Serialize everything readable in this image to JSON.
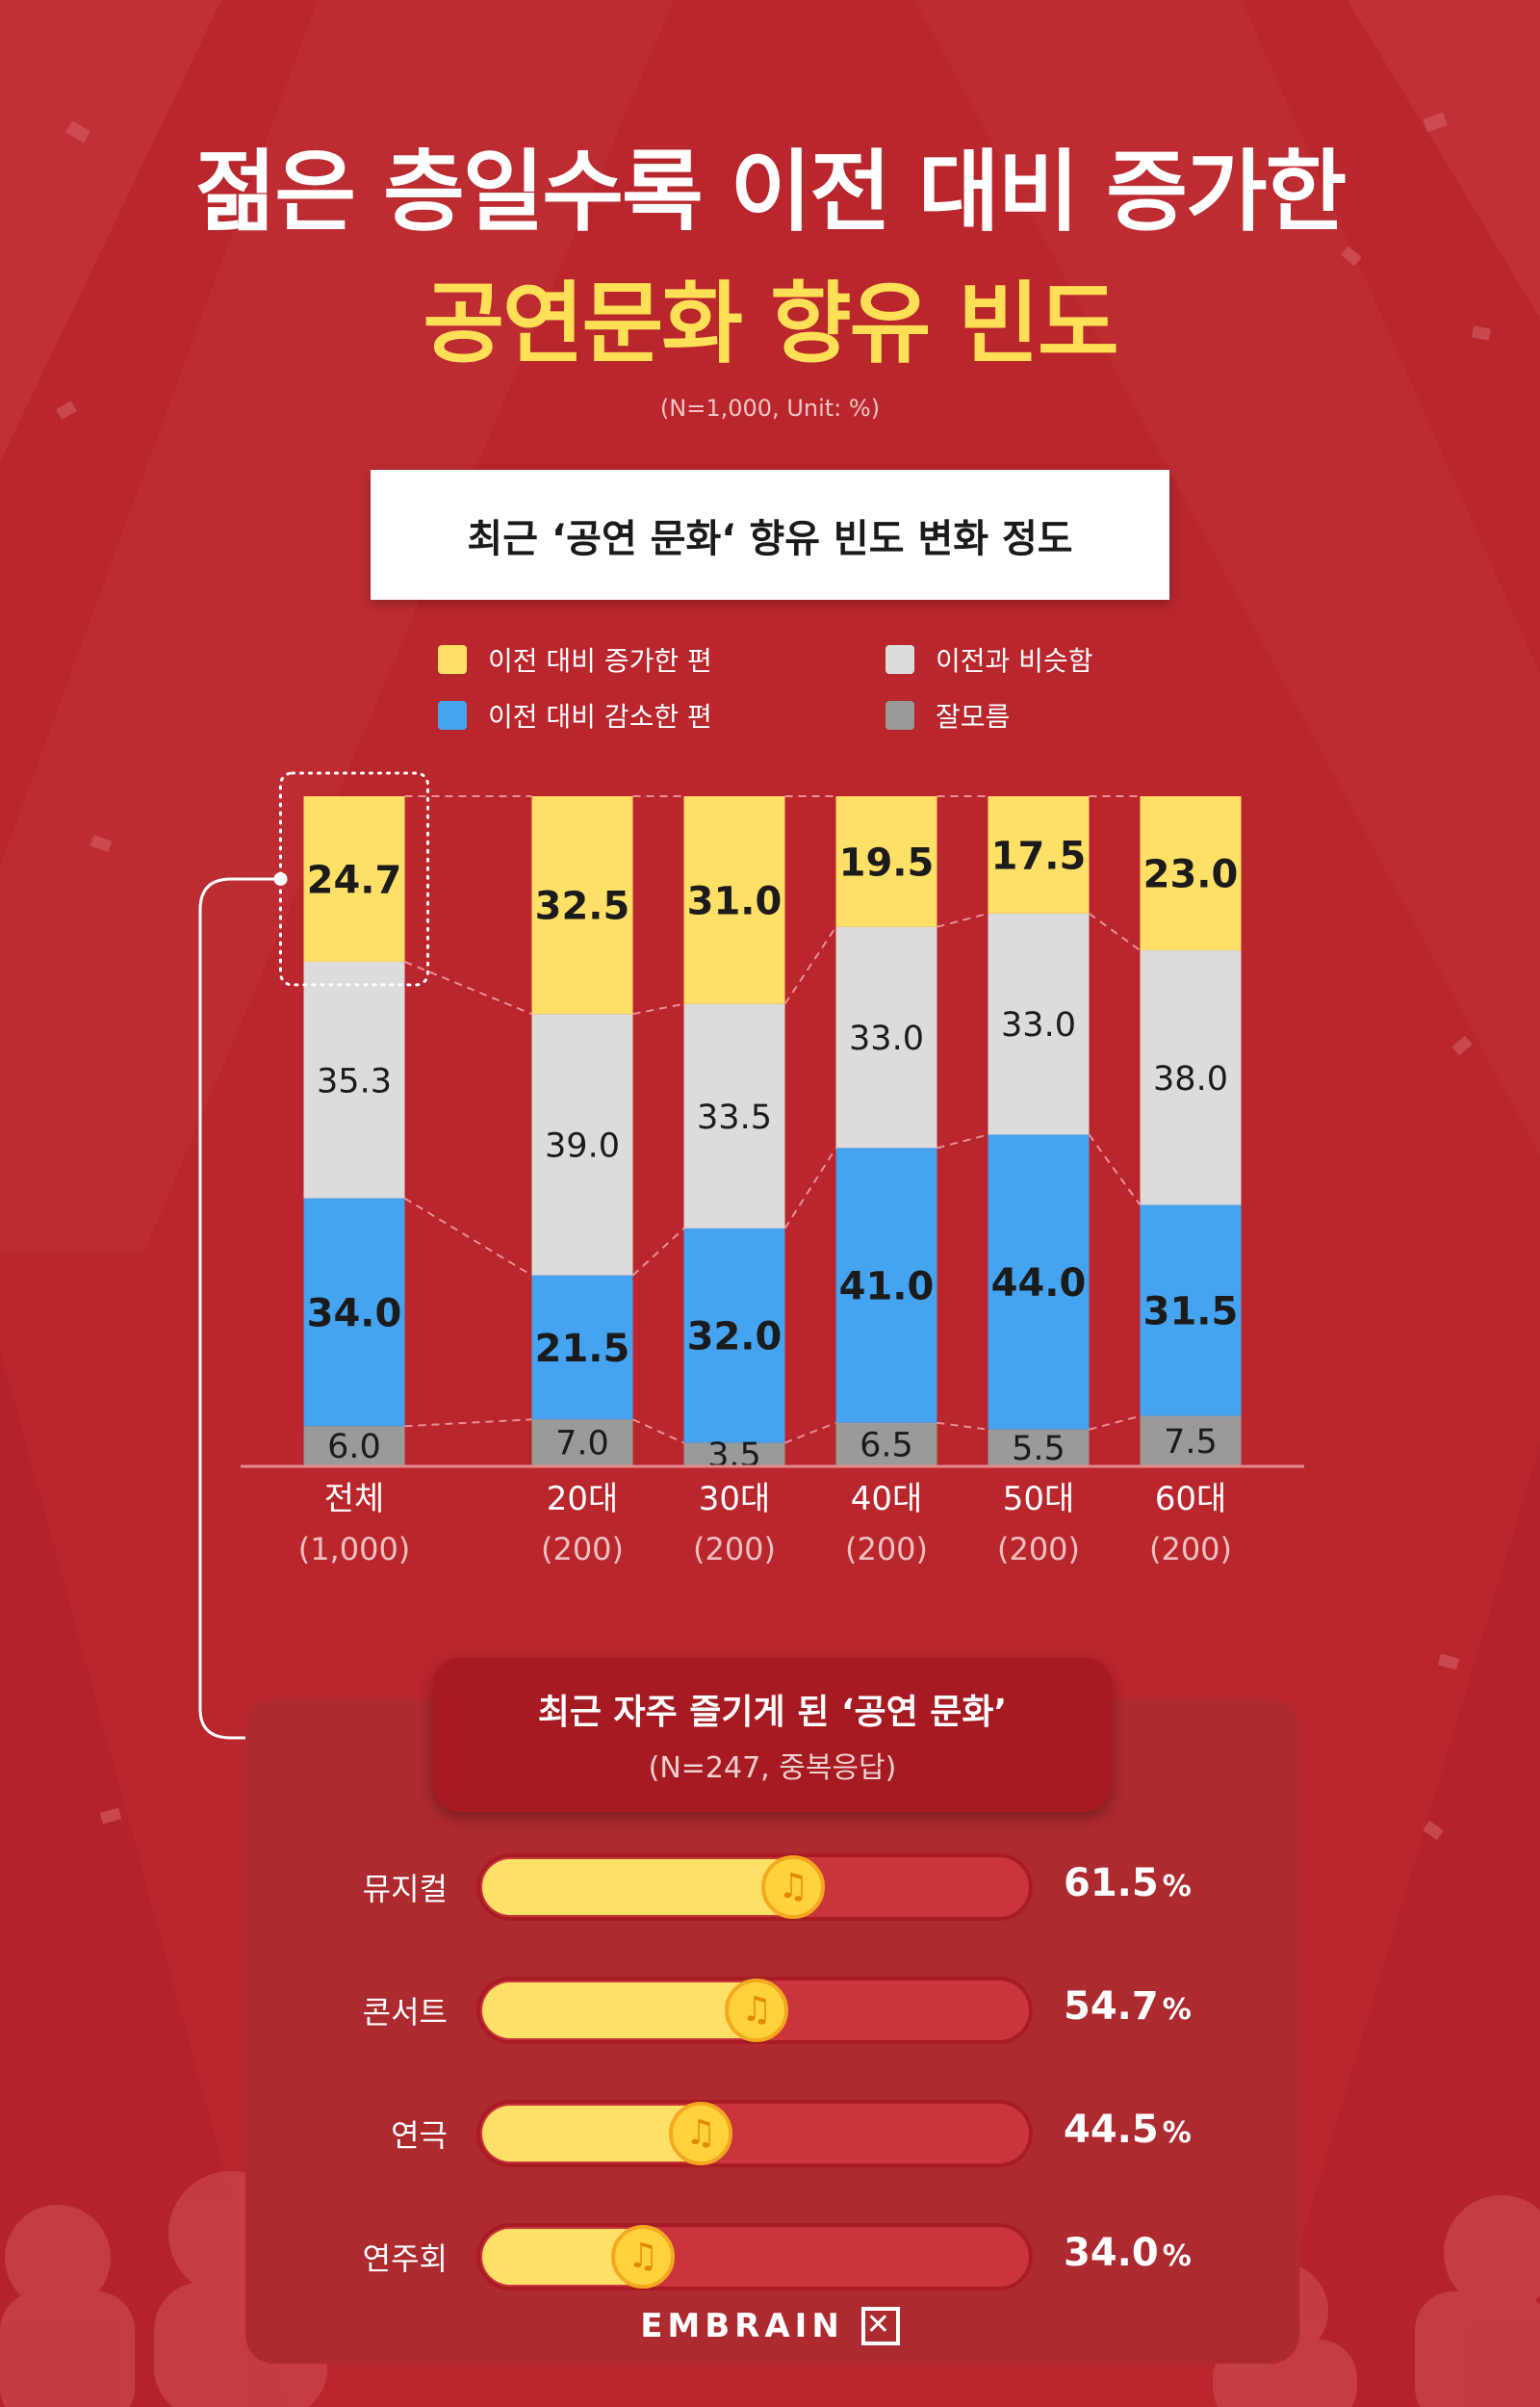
{
  "header": {
    "title_line1": "젊은 층일수록 이전 대비 증가한",
    "title_line2": "공연문화 향유 빈도",
    "sample_note": "(N=1,000, Unit: %)"
  },
  "banner": {
    "title": "최근 ‘공연 문화‘ 향유 빈도 변화 정도"
  },
  "colors": {
    "background": "#b9262c",
    "increased": "#ffe066",
    "similar": "#dcdcdc",
    "decreased": "#45a3f0",
    "unknown": "#9a9a9a",
    "accent_yellow": "#ffdf55"
  },
  "legend": [
    {
      "label": "이전 대비 증가한 편",
      "color": "#ffe066"
    },
    {
      "label": "이전과 비슷함",
      "color": "#dcdcdc"
    },
    {
      "label": "이전 대비 감소한 편",
      "color": "#45a3f0"
    },
    {
      "label": "잘모름",
      "color": "#9a9a9a"
    }
  ],
  "chart_data": [
    {
      "type": "bar",
      "stacked": true,
      "categories": [
        "전체",
        "20대",
        "30대",
        "40대",
        "50대",
        "60대"
      ],
      "category_counts": [
        "(1,000)",
        "(200)",
        "(200)",
        "(200)",
        "(200)",
        "(200)"
      ],
      "series": [
        {
          "name": "이전 대비 증가한 편",
          "values": [
            "24.7",
            "32.5",
            "31.0",
            "19.5",
            "17.5",
            "23.0"
          ]
        },
        {
          "name": "이전과 비슷함",
          "values": [
            "35.3",
            "39.0",
            "33.5",
            "33.0",
            "33.0",
            "38.0"
          ]
        },
        {
          "name": "이전 대비 감소한 편",
          "values": [
            "34.0",
            "21.5",
            "32.0",
            "41.0",
            "44.0",
            "31.5"
          ]
        },
        {
          "name": "잘모름",
          "values": [
            "6.0",
            "7.0",
            "3.5",
            "6.5",
            "5.5",
            "7.5"
          ]
        }
      ],
      "ylim": [
        0,
        100
      ],
      "legend_position": "top"
    },
    {
      "type": "bar",
      "orientation": "horizontal",
      "title": "최근 자주 즐기게 된 ‘공연 문화’",
      "subtitle": "(N=247, 중복응답)",
      "categories": [
        "뮤지컬",
        "콘서트",
        "연극",
        "연주회"
      ],
      "values": [
        "61.5",
        "54.7",
        "44.5",
        "34.0"
      ],
      "unit": "%",
      "xlim": [
        0,
        100
      ]
    }
  ],
  "brand": {
    "name": "EMBRAIN"
  }
}
